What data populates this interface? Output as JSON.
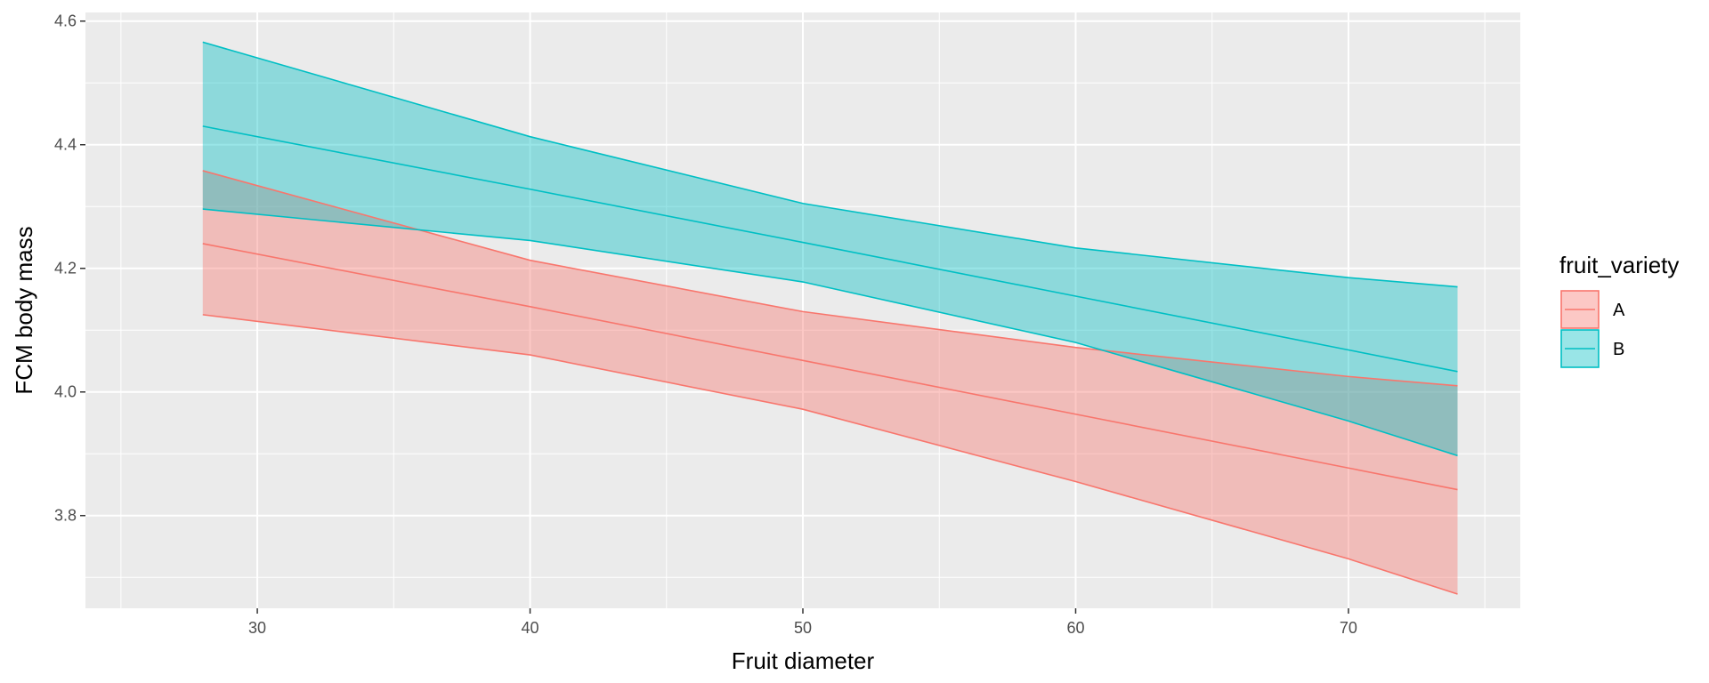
{
  "chart_data": {
    "type": "line",
    "title": "",
    "xlabel": "Fruit diameter",
    "ylabel": "FCM body mass",
    "xlim": [
      23.7,
      76.3
    ],
    "ylim": [
      3.65,
      4.614
    ],
    "x_ticks": [
      30,
      40,
      50,
      60,
      70
    ],
    "y_ticks": [
      3.8,
      4.0,
      4.2,
      4.4,
      4.6
    ],
    "x_tick_labels": [
      "30",
      "40",
      "50",
      "60",
      "70"
    ],
    "y_tick_labels": [
      "3.8",
      "4.0",
      "4.2",
      "4.4",
      "4.6"
    ],
    "grid": true,
    "legend": {
      "title": "fruit_variety",
      "position": "right"
    },
    "series": [
      {
        "name": "A",
        "color": "#F8766D",
        "fill": "#F8766D",
        "x": [
          28,
          40,
          50,
          60,
          70,
          74
        ],
        "y": [
          4.24,
          4.138,
          4.051,
          3.964,
          3.877,
          3.842
        ],
        "lower": [
          4.125,
          4.06,
          3.972,
          3.855,
          3.73,
          3.673
        ],
        "upper": [
          4.358,
          4.213,
          4.13,
          4.072,
          4.025,
          4.01
        ]
      },
      {
        "name": "B",
        "color": "#00BFC4",
        "fill": "#00BFC4",
        "x": [
          28,
          40,
          50,
          60,
          70,
          74
        ],
        "y": [
          4.43,
          4.328,
          4.242,
          4.155,
          4.068,
          4.033
        ],
        "lower": [
          4.296,
          4.245,
          4.178,
          4.08,
          3.953,
          3.897
        ],
        "upper": [
          4.566,
          4.413,
          4.305,
          4.233,
          4.185,
          4.17
        ]
      }
    ]
  }
}
